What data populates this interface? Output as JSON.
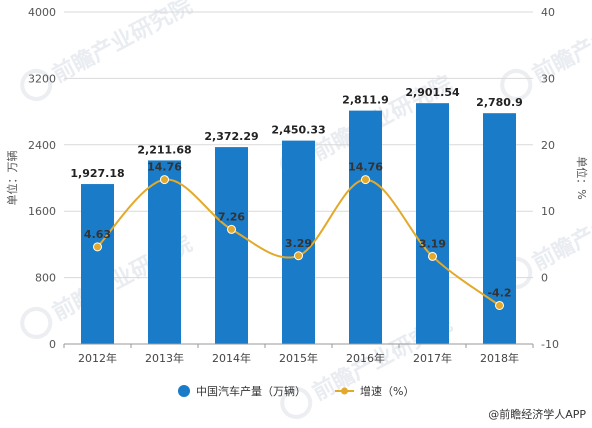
{
  "chart_data": {
    "type": "bar",
    "categories": [
      "2012年",
      "2013年",
      "2014年",
      "2015年",
      "2016年",
      "2017年",
      "2018年"
    ],
    "series": [
      {
        "name": "中国汽车产量（万辆）",
        "type": "bar",
        "axis": "left",
        "values": [
          1927.18,
          2211.68,
          2372.29,
          2450.33,
          2811.9,
          2901.54,
          2780.9
        ],
        "labels": [
          "1,927.18",
          "2,211.68",
          "2,372.29",
          "2,450.33",
          "2,811.9",
          "2,901.54",
          "2,780.9"
        ],
        "color": "#1a7cc8"
      },
      {
        "name": "增速（%）",
        "type": "line",
        "axis": "right",
        "values": [
          4.63,
          14.76,
          7.26,
          3.29,
          14.76,
          3.19,
          -4.2
        ],
        "labels": [
          "4.63",
          "14.76",
          "7.26",
          "3.29",
          "14.76",
          "3.19",
          "-4.2"
        ],
        "color": "#e3a92b"
      }
    ],
    "ylabel": "单位：万辆",
    "y2label": "单位：%",
    "ylim": [
      0,
      4000
    ],
    "y2lim": [
      -10,
      40
    ],
    "yticks": [
      0,
      800,
      1600,
      2400,
      3200,
      4000
    ],
    "y2ticks": [
      -10,
      0,
      10,
      20,
      30,
      40
    ],
    "grid": true,
    "legend": "bottom-center"
  },
  "source": "@前瞻经济学人APP",
  "watermark": "前瞻产业研究院"
}
